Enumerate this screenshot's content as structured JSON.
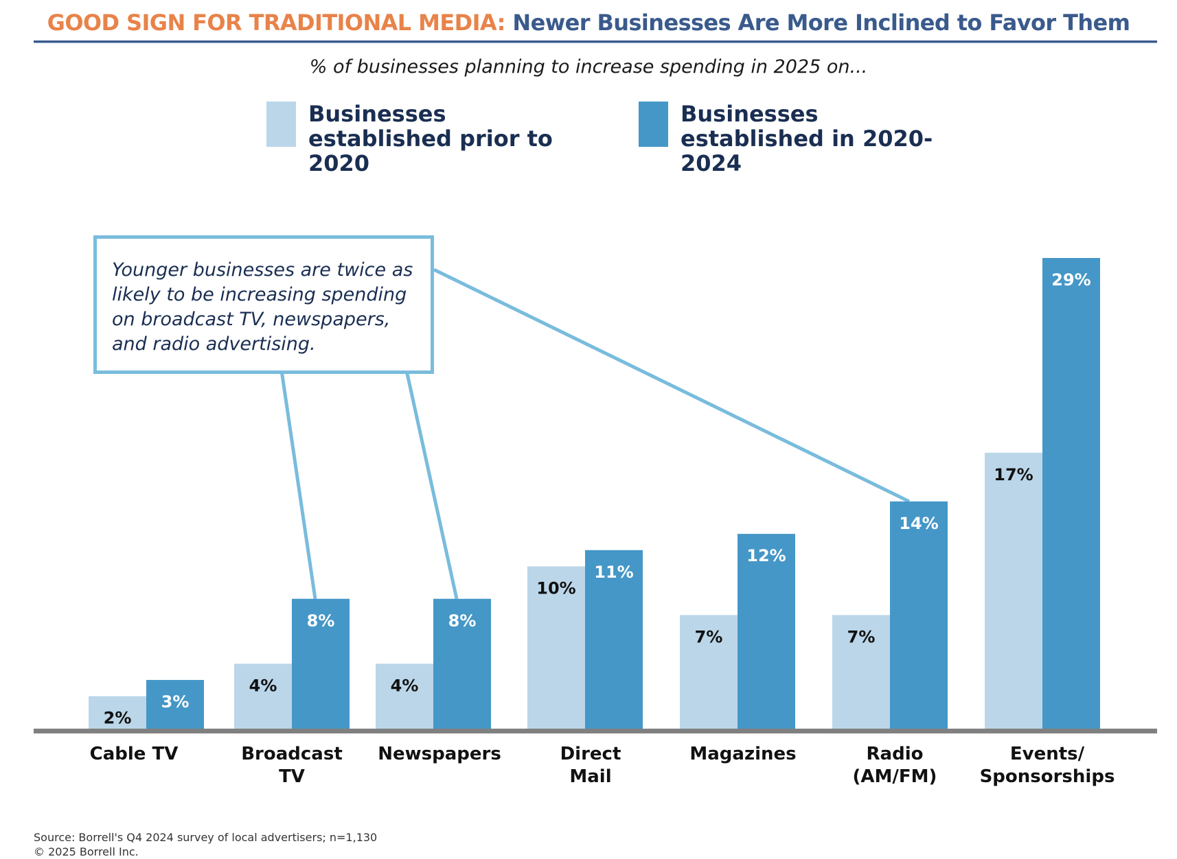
{
  "header": {
    "title_prefix": "GOOD SIGN FOR TRADITIONAL MEDIA:",
    "title_rest": "Newer Businesses Are More Inclined to Favor Them",
    "subtitle": "% of businesses planning to increase spending in 2025 on..."
  },
  "callout": {
    "text": "Younger businesses are twice as likely to be increasing spending on broadcast TV, newspapers, and radio advertising."
  },
  "footer": {
    "source": "Source: Borrell's Q4 2024 survey of local advertisers; n=1,130",
    "copyright": "© 2025 Borrell Inc."
  },
  "colors": {
    "series_older": "#BBD6E9",
    "series_newer": "#4597C7",
    "baseline": "#808080",
    "callout_border": "#79BCDD",
    "title_prefix": "#E8834A",
    "title_rest": "#3A5A8C"
  },
  "chart_data": {
    "type": "bar",
    "categories": [
      [
        "Cable TV"
      ],
      [
        "Broadcast",
        "TV"
      ],
      [
        "Newspapers"
      ],
      [
        "Direct",
        "Mail"
      ],
      [
        "Magazines"
      ],
      [
        "Radio",
        "(AM/FM)"
      ],
      [
        "Events/",
        "Sponsorships"
      ]
    ],
    "series": [
      {
        "name": "Businesses established prior to 2020",
        "values": [
          2,
          4,
          4,
          10,
          7,
          7,
          17
        ],
        "labels": [
          "2%",
          "4%",
          "4%",
          "10%",
          "7%",
          "7%",
          "17%"
        ]
      },
      {
        "name": "Businesses established in 2020-2024",
        "values": [
          3,
          8,
          8,
          11,
          12,
          14,
          29
        ],
        "labels": [
          "3%",
          "8%",
          "8%",
          "11%",
          "12%",
          "14%",
          "29%"
        ]
      }
    ],
    "ylim": [
      0,
      30
    ],
    "grid": false,
    "legend_position": "top",
    "callout_targets": [
      1,
      2,
      5
    ]
  }
}
